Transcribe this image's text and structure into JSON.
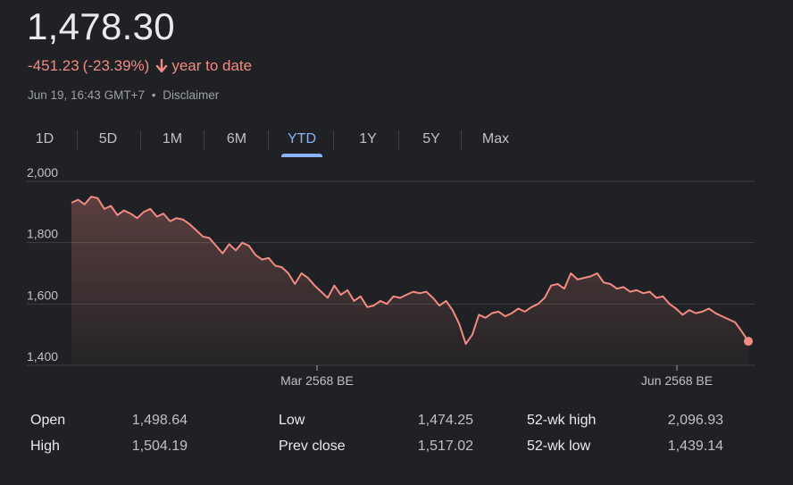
{
  "price": "1,478.30",
  "change": {
    "amount": "-451.23",
    "percent": "(-23.39%)",
    "period": "year to date",
    "direction_icon": "arrow-down-icon"
  },
  "meta": {
    "timestamp": "Jun 19, 16:43 GMT+7",
    "separator": "•",
    "disclaimer": "Disclaimer"
  },
  "tabs": [
    {
      "label": "1D"
    },
    {
      "label": "5D"
    },
    {
      "label": "1M"
    },
    {
      "label": "6M"
    },
    {
      "label": "YTD",
      "active": true
    },
    {
      "label": "1Y"
    },
    {
      "label": "5Y"
    },
    {
      "label": "Max"
    }
  ],
  "colors": {
    "line": "#f28b82",
    "accent": "#8ab4f8",
    "grid": "#3c4043",
    "axis_text": "#bdc1c6"
  },
  "chart_data": {
    "type": "area",
    "title": "",
    "xlabel": "",
    "ylabel": "",
    "ylim": [
      1400,
      2000
    ],
    "yticks": [
      2000,
      1800,
      1600,
      1400
    ],
    "ytick_labels": [
      "2,000",
      "1,800",
      "1,600",
      "1,400"
    ],
    "xtick_labels": [
      "Mar 2568 BE",
      "Jun 2568 BE"
    ],
    "grid": true,
    "series": [
      {
        "values": [
          1930,
          1940,
          1925,
          1950,
          1945,
          1910,
          1920,
          1890,
          1905,
          1895,
          1880,
          1900,
          1910,
          1885,
          1895,
          1870,
          1880,
          1875,
          1860,
          1840,
          1820,
          1815,
          1790,
          1765,
          1795,
          1775,
          1800,
          1790,
          1760,
          1745,
          1750,
          1725,
          1720,
          1700,
          1665,
          1700,
          1685,
          1660,
          1640,
          1620,
          1660,
          1630,
          1645,
          1610,
          1625,
          1590,
          1595,
          1610,
          1600,
          1625,
          1620,
          1630,
          1640,
          1635,
          1640,
          1620,
          1595,
          1610,
          1580,
          1535,
          1470,
          1500,
          1565,
          1555,
          1570,
          1575,
          1560,
          1570,
          1585,
          1575,
          1590,
          1600,
          1620,
          1660,
          1665,
          1650,
          1700,
          1680,
          1685,
          1690,
          1700,
          1670,
          1665,
          1650,
          1655,
          1640,
          1645,
          1635,
          1640,
          1620,
          1625,
          1600,
          1585,
          1565,
          1580,
          1570,
          1575,
          1585,
          1570,
          1560,
          1550,
          1540,
          1510,
          1478.3
        ]
      }
    ]
  },
  "stats": {
    "open_label": "Open",
    "open_value": "1,498.64",
    "high_label": "High",
    "high_value": "1,504.19",
    "low_label": "Low",
    "low_value": "1,474.25",
    "prev_close_label": "Prev close",
    "prev_close_value": "1,517.02",
    "wk52_high_label": "52-wk high",
    "wk52_high_value": "2,096.93",
    "wk52_low_label": "52-wk low",
    "wk52_low_value": "1,439.14"
  }
}
